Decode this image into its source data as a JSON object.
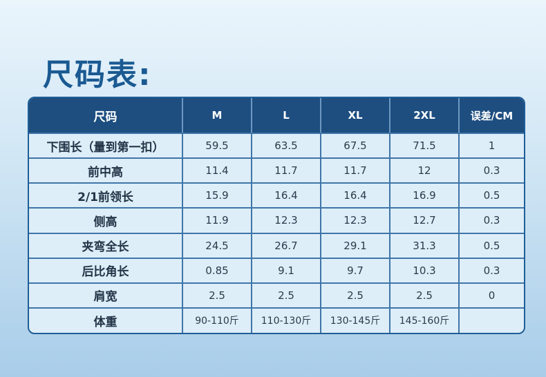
{
  "title": "尺码表:",
  "table": {
    "headers": [
      "尺码",
      "M",
      "L",
      "XL",
      "2XL",
      "误差/CM"
    ],
    "rows": [
      [
        "下围长（量到第一扣）",
        "59.5",
        "63.5",
        "67.5",
        "71.5",
        "1"
      ],
      [
        "前中高",
        "11.4",
        "11.7",
        "11.7",
        "12",
        "0.3"
      ],
      [
        "2/1前领长",
        "15.9",
        "16.4",
        "16.4",
        "16.9",
        "0.5"
      ],
      [
        "侧高",
        "11.9",
        "12.3",
        "12.3",
        "12.7",
        "0.3"
      ],
      [
        "夹弯全长",
        "24.5",
        "26.7",
        "29.1",
        "31.3",
        "0.5"
      ],
      [
        "后比角长",
        "0.85",
        "9.1",
        "9.7",
        "10.3",
        "0.3"
      ],
      [
        "肩宽",
        "2.5",
        "2.5",
        "2.5",
        "2.5",
        "0"
      ],
      [
        "体重",
        "90-110斤",
        "110-130斤",
        "130-145斤",
        "145-160斤",
        ""
      ]
    ]
  }
}
